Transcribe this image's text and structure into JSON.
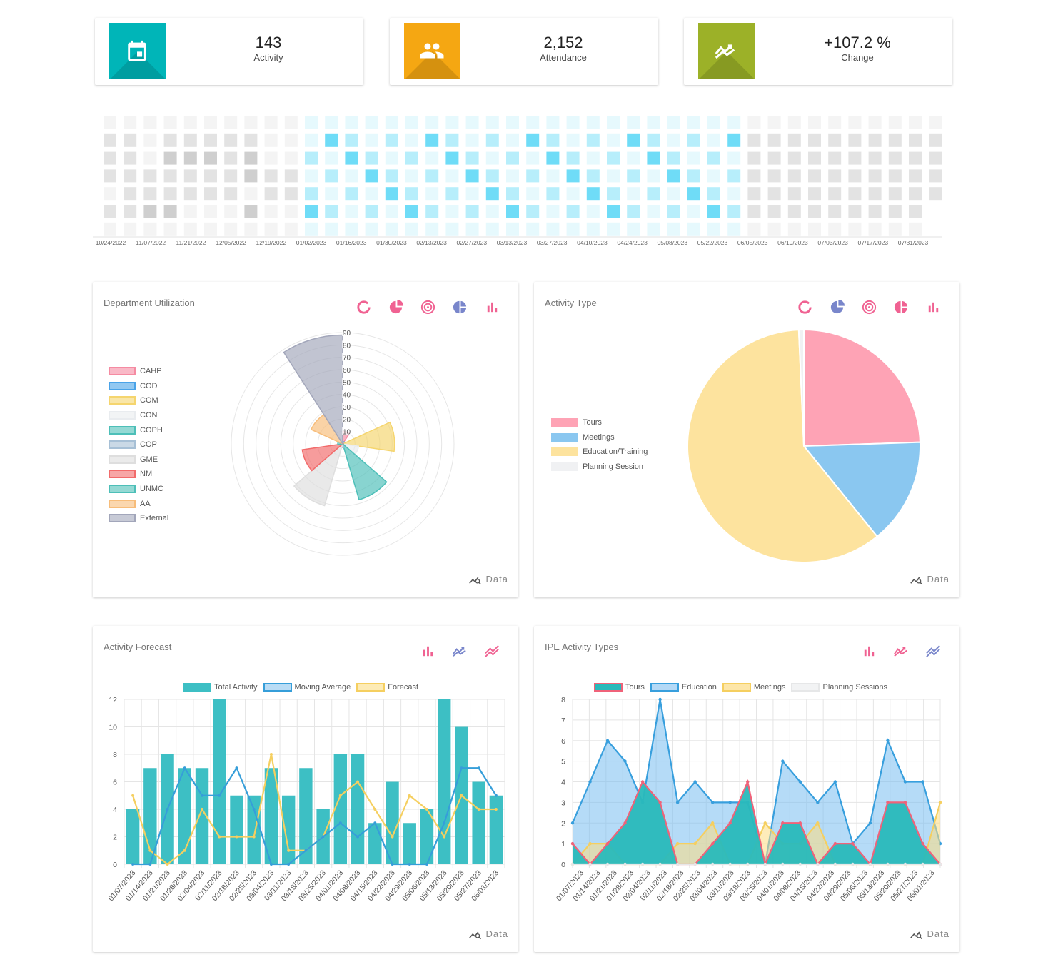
{
  "kpis": [
    {
      "value": "143",
      "label": "Activity",
      "color": "#00b5b8",
      "icon": "calendar-icon"
    },
    {
      "value": "2,152",
      "label": "Attendance",
      "color": "#f5a712",
      "icon": "people-icon"
    },
    {
      "value": "+107.2 %",
      "label": "Change",
      "color": "#9cb128",
      "icon": "trend-icon"
    }
  ],
  "heatmap": {
    "week_labels": [
      "10/24/2022",
      "11/07/2022",
      "11/21/2022",
      "12/05/2022",
      "12/19/2022",
      "01/02/2023",
      "01/16/2023",
      "01/30/2023",
      "02/13/2023",
      "02/27/2023",
      "03/13/2023",
      "03/27/2023",
      "04/10/2023",
      "04/24/2023",
      "05/08/2023",
      "05/22/2023",
      "06/05/2023",
      "06/19/2023",
      "07/03/2023",
      "07/17/2023",
      "07/31/2023"
    ],
    "grid": [
      [
        1,
        1,
        1,
        1,
        1,
        1,
        1,
        1,
        1,
        1,
        1,
        1,
        1,
        1,
        1,
        1,
        1,
        1,
        1,
        1,
        1,
        1,
        1,
        1,
        1,
        1,
        1,
        1,
        1,
        1,
        1,
        1,
        1,
        1,
        1,
        1,
        1,
        1,
        1,
        1,
        1,
        1,
        1,
        1,
        1,
        1,
        1,
        1,
        1,
        1,
        1,
        1,
        1,
        1,
        1,
        1,
        1,
        1,
        1,
        1,
        1,
        1,
        1,
        1,
        1,
        1,
        1,
        1,
        1,
        1,
        1,
        1,
        1,
        1,
        1,
        1,
        1,
        1,
        1,
        1,
        1,
        1,
        1,
        1,
        1,
        1,
        1,
        1,
        1,
        1,
        1,
        1,
        1,
        1,
        1,
        1,
        1,
        1,
        1,
        1,
        1,
        1,
        1,
        1,
        1,
        1,
        1,
        1,
        1,
        1,
        1,
        1,
        1,
        1,
        1,
        1,
        1,
        1,
        1,
        1,
        1,
        1,
        1,
        1,
        1,
        1,
        1,
        1,
        1,
        1,
        1,
        1,
        1,
        1,
        1,
        1,
        1,
        1,
        1,
        1,
        1,
        1,
        1,
        1,
        1,
        1,
        1,
        1,
        1,
        1,
        1,
        1,
        1,
        1,
        1,
        1,
        1,
        1,
        1,
        1,
        1,
        1,
        1,
        1,
        1,
        1,
        1,
        1,
        1,
        1,
        1,
        1,
        1,
        1,
        1,
        1,
        1,
        1,
        1,
        1,
        1,
        1,
        1,
        1,
        1,
        1,
        1,
        1,
        1,
        1,
        1,
        1,
        1,
        1,
        1,
        1,
        1,
        1,
        1,
        1,
        1,
        1,
        1,
        1,
        1,
        1,
        1,
        1,
        1,
        1,
        1,
        1,
        1,
        1,
        1,
        1,
        1,
        1,
        1,
        1,
        1,
        1,
        1,
        1,
        1,
        1,
        1,
        1,
        1,
        1,
        1,
        1,
        1,
        1,
        1,
        1,
        1,
        1,
        1,
        1,
        1,
        1,
        1,
        1,
        1
      ]
    ],
    "colors": {
      "off_low": "#f4f4f4",
      "off_mid": "#e3e3e3",
      "off_high": "#cfcfcf",
      "on_low": "#e6f9fd",
      "on_mid": "#b7eefb",
      "on_high": "#6fdcf7"
    }
  },
  "dept": {
    "title": "Department Utilization",
    "data_label": "Data",
    "chart_data": {
      "type": "polarArea",
      "categories": [
        "CAHP",
        "COD",
        "COM",
        "CON",
        "COPH",
        "COP",
        "GME",
        "NM",
        "UNMC",
        "AA",
        "External"
      ],
      "values": [
        10,
        2,
        42,
        13,
        47,
        3,
        52,
        33,
        4,
        28,
        88
      ],
      "colors": [
        "#f58ba2",
        "#4aa3e8",
        "#f5d56e",
        "#e9ecef",
        "#4dbfb8",
        "#a7c0d6",
        "#dedede",
        "#f26b6b",
        "#4dbfb8",
        "#f7bd7a",
        "#a2a6ba"
      ],
      "r_ticks": [
        "10",
        "20",
        "30",
        "40",
        "50",
        "60",
        "70",
        "80",
        "90"
      ],
      "rmax": 90
    }
  },
  "activity": {
    "title": "Activity Type",
    "data_label": "Data",
    "chart_data": {
      "type": "pie",
      "categories": [
        "Tours",
        "Meetings",
        "Education/Training",
        "Planning Session"
      ],
      "values": [
        35,
        21,
        86,
        1
      ],
      "colors": [
        "#fea3b5",
        "#8ac7f0",
        "#fde39e",
        "#f0f1f3"
      ]
    }
  },
  "forecast": {
    "title": "Activity Forecast",
    "data_label": "Data",
    "legend": [
      "Total Activity",
      "Moving Average",
      "Forecast"
    ],
    "chart_data": {
      "type": "bar+line",
      "categories": [
        "01/07/2023",
        "01/14/2023",
        "01/21/2023",
        "01/28/2023",
        "02/04/2023",
        "02/11/2023",
        "02/18/2023",
        "02/25/2023",
        "03/04/2023",
        "03/11/2023",
        "03/18/2023",
        "03/25/2023",
        "04/01/2023",
        "04/08/2023",
        "04/15/2023",
        "04/22/2023",
        "04/29/2023",
        "05/06/2023",
        "05/13/2023",
        "05/20/2023",
        "05/27/2023",
        "06/01/2023"
      ],
      "series": [
        {
          "name": "Total Activity",
          "values": [
            4,
            7,
            8,
            7,
            7,
            12,
            5,
            5,
            7,
            5,
            7,
            4,
            8,
            8,
            3,
            6,
            3,
            4,
            12,
            10,
            6,
            5
          ]
        },
        {
          "name": "Moving Average",
          "values": [
            0,
            0,
            4,
            7,
            5,
            5,
            7,
            4,
            0,
            0,
            1,
            2,
            3,
            2,
            3,
            0,
            0,
            0,
            3,
            7,
            7,
            5
          ]
        },
        {
          "name": "Forecast",
          "values": [
            5,
            1,
            0,
            1,
            4,
            2,
            2,
            2,
            8,
            1,
            1,
            2,
            5,
            6,
            4,
            2,
            5,
            4,
            2,
            5,
            4,
            4
          ]
        }
      ],
      "yticks": [
        "0",
        "2",
        "4",
        "6",
        "8",
        "10",
        "12"
      ],
      "ylim": [
        0,
        12
      ]
    }
  },
  "ipe": {
    "title": "IPE Activity Types",
    "data_label": "Data",
    "legend": [
      "Tours",
      "Education",
      "Meetings",
      "Planning Sessions"
    ],
    "chart_data": {
      "type": "area",
      "categories": [
        "01/07/2023",
        "01/14/2023",
        "01/21/2023",
        "01/28/2023",
        "02/04/2023",
        "02/11/2023",
        "02/18/2023",
        "02/25/2023",
        "03/04/2023",
        "03/11/2023",
        "03/18/2023",
        "03/25/2023",
        "04/01/2023",
        "04/08/2023",
        "04/15/2023",
        "04/22/2023",
        "04/29/2023",
        "05/06/2023",
        "05/13/2023",
        "05/20/2023",
        "05/27/2023",
        "06/01/2023"
      ],
      "series": [
        {
          "name": "Tours",
          "values": [
            1,
            0,
            1,
            2,
            4,
            3,
            0,
            0,
            1,
            2,
            4,
            0,
            2,
            2,
            0,
            1,
            1,
            0,
            3,
            3,
            1,
            0
          ]
        },
        {
          "name": "Education",
          "values": [
            2,
            4,
            6,
            5,
            3,
            8,
            3,
            4,
            3,
            3,
            3,
            0,
            5,
            4,
            3,
            4,
            1,
            2,
            6,
            4,
            4,
            1
          ]
        },
        {
          "name": "Meetings",
          "values": [
            0,
            1,
            1,
            0,
            0,
            0,
            1,
            1,
            2,
            0,
            0,
            2,
            1,
            1,
            2,
            0,
            0,
            0,
            0,
            0,
            0,
            3
          ]
        },
        {
          "name": "Planning Sessions",
          "values": [
            0,
            0,
            0,
            0,
            0,
            0,
            0,
            0,
            0,
            0,
            0,
            0,
            0,
            0,
            0,
            0,
            0,
            0,
            0,
            0,
            0,
            0
          ]
        }
      ],
      "yticks": [
        "0",
        "1",
        "2",
        "3",
        "4",
        "5",
        "6",
        "7",
        "8"
      ],
      "ylim": [
        0,
        8
      ]
    }
  }
}
